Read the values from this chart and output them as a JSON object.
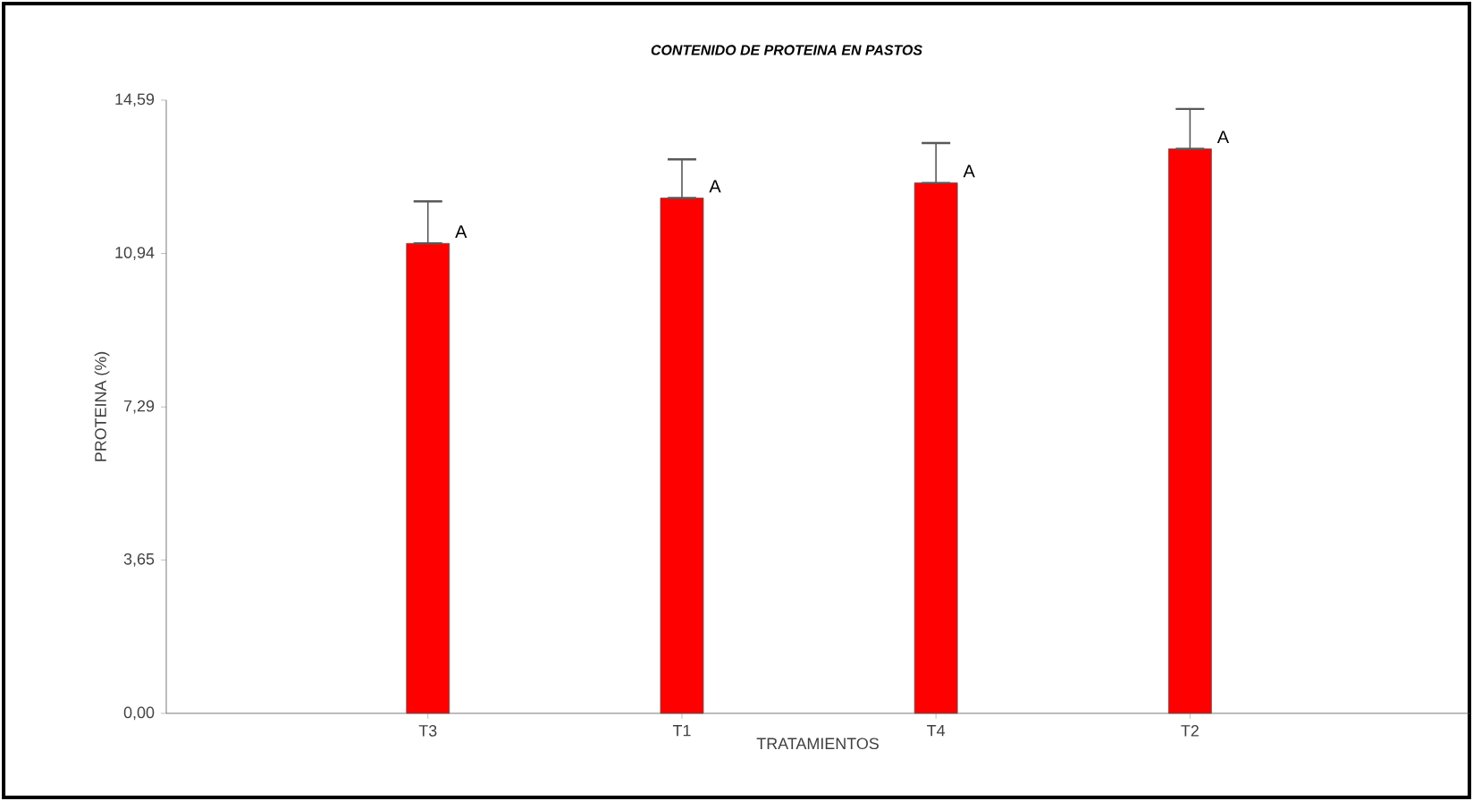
{
  "chart_data": {
    "type": "bar",
    "title": "**CONTENIDO DE PROTEINA EN PASTOS**",
    "xlabel": "TRATAMIENTOS",
    "ylabel": "PROTEINA (%)",
    "categories": [
      "T3",
      "T1",
      "T4",
      "T2"
    ],
    "values": [
      11.18,
      12.26,
      12.62,
      13.43
    ],
    "errors": [
      [
        11.18,
        12.18
      ],
      [
        12.26,
        13.18
      ],
      [
        12.62,
        13.57
      ],
      [
        13.43,
        14.38
      ]
    ],
    "color": "#ff0000",
    "ylim": [
      0,
      14.59
    ],
    "yticks": [
      {
        "value": 0,
        "label": "0,00"
      },
      {
        "value": 3.65,
        "label": "3,65"
      },
      {
        "value": 7.29,
        "label": "7,29"
      },
      {
        "value": 10.94,
        "label": "10,94"
      },
      {
        "value": 14.59,
        "label": "14,59"
      }
    ],
    "annotations": [
      {
        "text": "A",
        "x": "T3",
        "y": 11.18
      },
      {
        "text": "A",
        "x": "T1",
        "y": 12.26
      },
      {
        "text": "A",
        "x": "T4",
        "y": 12.62
      },
      {
        "text": "A",
        "x": "T2",
        "y": 13.43
      }
    ]
  }
}
